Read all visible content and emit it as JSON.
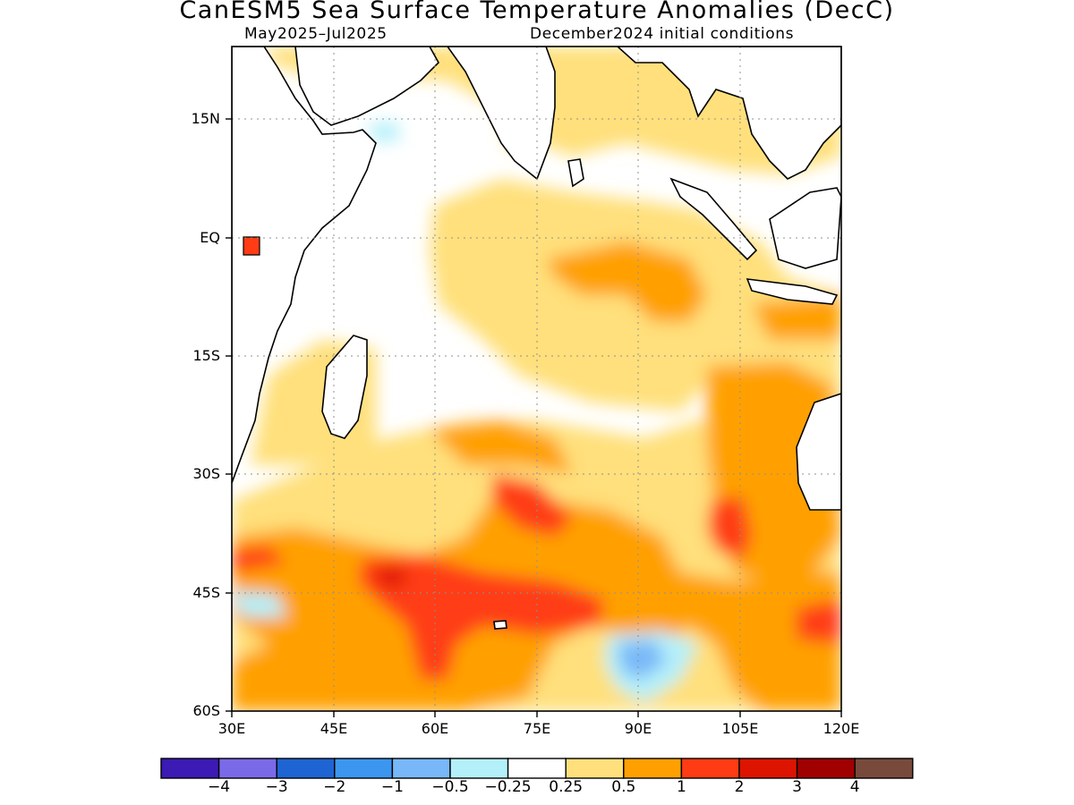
{
  "figure": {
    "title": "CanESM5 Sea Surface Temperature Anomalies (DecC)",
    "subtitle_left": "May2025–Jul2025",
    "subtitle_right": "December2024 initial conditions"
  },
  "map": {
    "region": "Indian Ocean",
    "lon_range": [
      30,
      120
    ],
    "lat_range": [
      -60,
      24
    ],
    "lat_ticks": [
      {
        "value": 15,
        "label": "15N"
      },
      {
        "value": 0,
        "label": "EQ"
      },
      {
        "value": -15,
        "label": "15S"
      },
      {
        "value": -30,
        "label": "30S"
      },
      {
        "value": -45,
        "label": "45S"
      },
      {
        "value": -60,
        "label": "60S"
      }
    ],
    "lon_ticks": [
      {
        "value": 30,
        "label": "30E"
      },
      {
        "value": 45,
        "label": "45E"
      },
      {
        "value": 60,
        "label": "60E"
      },
      {
        "value": 75,
        "label": "75E"
      },
      {
        "value": 90,
        "label": "90E"
      },
      {
        "value": 105,
        "label": "105E"
      },
      {
        "value": 120,
        "label": "120E"
      }
    ],
    "grid": "dotted"
  },
  "colorbar": {
    "colors": [
      "#3c1ab4",
      "#7a6ae8",
      "#1e64d2",
      "#3c96f0",
      "#78b8f8",
      "#b4f0fa",
      "#ffffff",
      "#ffe07c",
      "#ffa000",
      "#ff3c14",
      "#dc1400",
      "#a00000",
      "#784a3c"
    ],
    "labels": [
      "−4",
      "−3",
      "−2",
      "−1",
      "−0.5",
      "−0.25",
      "0.25",
      "0.5",
      "1",
      "2",
      "3",
      "4"
    ]
  },
  "chart_data": {
    "type": "heatmap",
    "variable": "Sea Surface Temperature Anomaly",
    "units": "DecC",
    "period": "May2025–Jul2025",
    "initial_conditions": "December2024",
    "xlim": [
      30,
      120
    ],
    "ylim": [
      -60,
      24
    ],
    "levels": [
      -4,
      -3,
      -2,
      -1,
      -0.5,
      -0.25,
      0.25,
      0.5,
      1,
      2,
      3,
      4
    ],
    "anomaly_regions": [
      {
        "name": "equatorial-east",
        "lon_range": [
          68,
          105
        ],
        "lat_range": [
          -12,
          0
        ],
        "value": 1.0
      },
      {
        "name": "west-australia",
        "lon_range": [
          100,
          118
        ],
        "lat_range": [
          -48,
          -15
        ],
        "value": 1.0
      },
      {
        "name": "southern-ocean-core",
        "lon_range": [
          50,
          85
        ],
        "lat_range": [
          -52,
          -40
        ],
        "value": 2.0
      },
      {
        "name": "south-of-australia",
        "lon_range": [
          110,
          120
        ],
        "lat_range": [
          -48,
          -44
        ],
        "value": 2.0
      },
      {
        "name": "southern-cool-patch",
        "lon_range": [
          83,
          95
        ],
        "lat_range": [
          -58,
          -49
        ],
        "value": -0.5
      }
    ]
  }
}
